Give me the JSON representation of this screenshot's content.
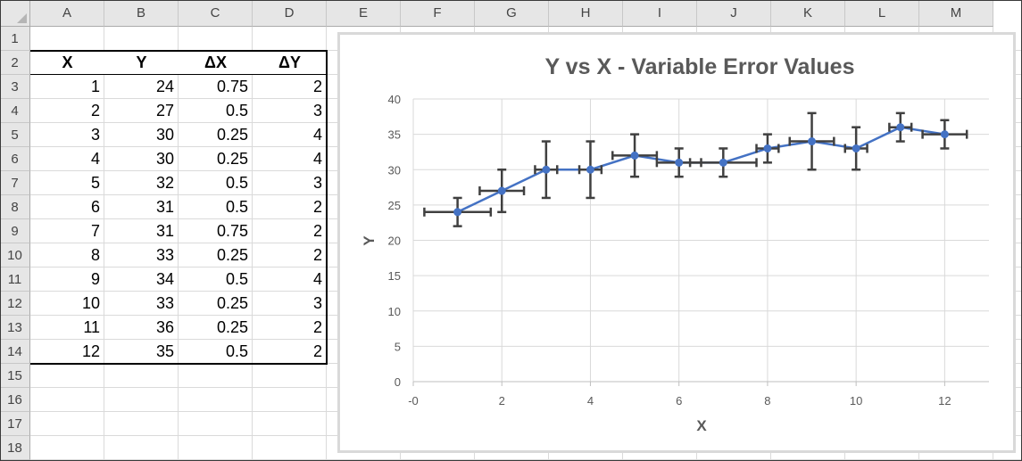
{
  "sheet": {
    "columns": [
      "A",
      "B",
      "C",
      "D",
      "E",
      "F",
      "G",
      "H",
      "I",
      "J",
      "K",
      "L",
      "M"
    ],
    "rows": [
      "1",
      "2",
      "3",
      "4",
      "5",
      "6",
      "7",
      "8",
      "9",
      "10",
      "11",
      "12",
      "13",
      "14",
      "15",
      "16",
      "17",
      "18"
    ],
    "table": {
      "headers": [
        "X",
        "Y",
        "ΔX",
        "ΔY"
      ],
      "rows": [
        [
          "1",
          "24",
          "0.75",
          "2"
        ],
        [
          "2",
          "27",
          "0.5",
          "3"
        ],
        [
          "3",
          "30",
          "0.25",
          "4"
        ],
        [
          "4",
          "30",
          "0.25",
          "4"
        ],
        [
          "5",
          "32",
          "0.5",
          "3"
        ],
        [
          "6",
          "31",
          "0.5",
          "2"
        ],
        [
          "7",
          "31",
          "0.75",
          "2"
        ],
        [
          "8",
          "33",
          "0.25",
          "2"
        ],
        [
          "9",
          "34",
          "0.5",
          "4"
        ],
        [
          "10",
          "33",
          "0.25",
          "3"
        ],
        [
          "11",
          "36",
          "0.25",
          "2"
        ],
        [
          "12",
          "35",
          "0.5",
          "2"
        ]
      ]
    }
  },
  "colors": {
    "series": "#4472c4",
    "errorbar": "#404040",
    "grid": "#d9d9d9",
    "title": "#595959"
  },
  "chart_data": {
    "type": "scatter",
    "title": "Y vs X - Variable Error Values",
    "xlabel": "X",
    "ylabel": "Y",
    "xlim": [
      0,
      13
    ],
    "ylim": [
      0,
      40
    ],
    "x_tick_labels": [
      "-0",
      "2",
      "4",
      "6",
      "8",
      "10",
      "12"
    ],
    "x_tick_values": [
      0,
      2,
      4,
      6,
      8,
      10,
      12
    ],
    "y_tick_labels": [
      "0",
      "5",
      "10",
      "15",
      "20",
      "25",
      "30",
      "35",
      "40"
    ],
    "y_tick_values": [
      0,
      5,
      10,
      15,
      20,
      25,
      30,
      35,
      40
    ],
    "grid": true,
    "series": [
      {
        "x": [
          1,
          2,
          3,
          4,
          5,
          6,
          7,
          8,
          9,
          10,
          11,
          12
        ],
        "y": [
          24,
          27,
          30,
          30,
          32,
          31,
          31,
          33,
          34,
          33,
          36,
          35
        ],
        "x_error": [
          0.75,
          0.5,
          0.25,
          0.25,
          0.5,
          0.5,
          0.75,
          0.25,
          0.5,
          0.25,
          0.25,
          0.5
        ],
        "y_error": [
          2,
          3,
          4,
          4,
          3,
          2,
          2,
          2,
          4,
          3,
          2,
          2
        ]
      }
    ]
  }
}
